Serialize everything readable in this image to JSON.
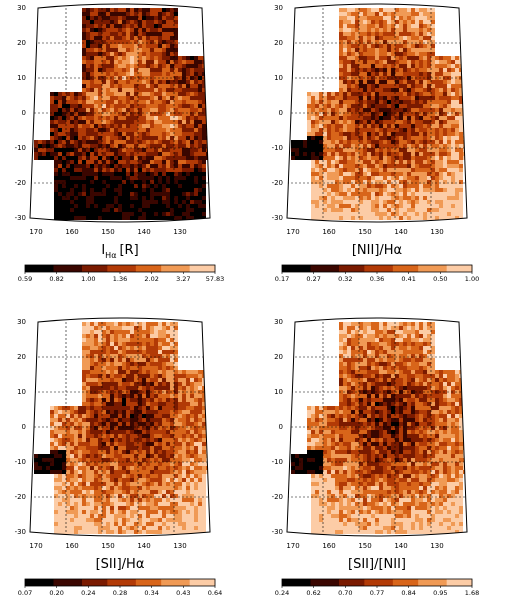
{
  "colormap": [
    "#000000",
    "#3a0600",
    "#7a1a00",
    "#b23a06",
    "#d8651a",
    "#f09a55",
    "#fccca6",
    "#ffffff"
  ],
  "panels": [
    {
      "id": "ha",
      "title_main": "I",
      "title_sub": "Hα",
      "title_tail": "[R]",
      "y_ticks": [
        "30",
        "20",
        "10",
        "0",
        "-10",
        "-20",
        "-30"
      ],
      "x_ticks": [
        "170",
        "160",
        "150",
        "140",
        "130"
      ],
      "cbar": [
        "0.59",
        "0.82",
        "1.00",
        "1.36",
        "2.02",
        "3.27",
        "57.83"
      ],
      "bright": true
    },
    {
      "id": "nii",
      "title_main": "[NII]/Hα",
      "title_sub": "",
      "title_tail": "",
      "y_ticks": [
        "30",
        "20",
        "10",
        "0",
        "-10",
        "-20",
        "-30"
      ],
      "x_ticks": [
        "170",
        "160",
        "150",
        "140",
        "130"
      ],
      "cbar": [
        "0.17",
        "0.27",
        "0.32",
        "0.36",
        "0.41",
        "0.50",
        "1.00"
      ],
      "bright": false
    },
    {
      "id": "sii",
      "title_main": "[SII]/Hα",
      "title_sub": "",
      "title_tail": "",
      "y_ticks": [
        "30",
        "20",
        "10",
        "0",
        "-10",
        "-20",
        "-30"
      ],
      "x_ticks": [
        "170",
        "160",
        "150",
        "140",
        "130"
      ],
      "cbar": [
        "0.07",
        "0.20",
        "0.24",
        "0.28",
        "0.34",
        "0.43",
        "0.64"
      ],
      "bright": false
    },
    {
      "id": "sii-nii",
      "title_main": "[SII]/[NII]",
      "title_sub": "",
      "title_tail": "",
      "y_ticks": [
        "30",
        "20",
        "10",
        "0",
        "-10",
        "-20",
        "-30"
      ],
      "x_ticks": [
        "170",
        "160",
        "150",
        "140",
        "130"
      ],
      "cbar": [
        "0.24",
        "0.62",
        "0.70",
        "0.77",
        "0.84",
        "0.95",
        "1.68"
      ],
      "bright": false
    }
  ]
}
